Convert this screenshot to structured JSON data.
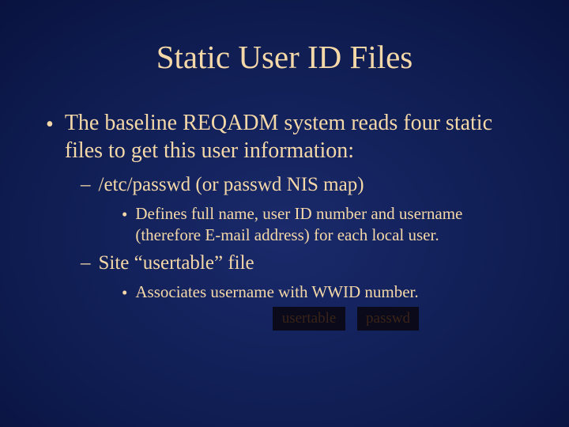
{
  "styling": {
    "background_gradient_stops": [
      "#1a2a6b",
      "#0f1d52",
      "#08103a",
      "#020418"
    ],
    "text_color": "#f5d8a8",
    "font_family": "Times New Roman",
    "title_fontsize": 41,
    "l1_fontsize": 28,
    "l2_fontsize": 25,
    "l3_fontsize": 21,
    "ghost_box_bg": "#0a0a1a",
    "ghost_box_text": "#3a2318"
  },
  "slide": {
    "title": "Static User ID Files",
    "l1_bullet": "The baseline REQADM system reads four static files to get this user information:",
    "items": [
      {
        "l2": "/etc/passwd (or passwd NIS map)",
        "l3": "Defines full name, user ID number and username (therefore E-mail address) for each local user."
      },
      {
        "l2": "Site “usertable” file",
        "l3": "Associates username with WWID number."
      }
    ],
    "ghost_boxes": {
      "left": "usertable",
      "right": "passwd"
    }
  }
}
